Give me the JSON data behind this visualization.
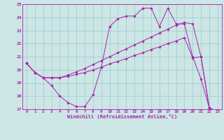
{
  "xlabel": "Windchill (Refroidissement éolien,°C)",
  "bg_color": "#cce5e5",
  "line_color": "#aa22aa",
  "grid_color": "#99cccc",
  "xlim": [
    -0.5,
    23.5
  ],
  "ylim": [
    17,
    25
  ],
  "xticks": [
    0,
    1,
    2,
    3,
    4,
    5,
    6,
    7,
    8,
    9,
    10,
    11,
    12,
    13,
    14,
    15,
    16,
    17,
    18,
    19,
    20,
    21,
    22,
    23
  ],
  "yticks": [
    17,
    18,
    19,
    20,
    21,
    22,
    23,
    24,
    25
  ],
  "line1_x": [
    0,
    1,
    2,
    3,
    4,
    5,
    6,
    7,
    8,
    9,
    10,
    11,
    12,
    13,
    14,
    15,
    16,
    17,
    18,
    19,
    20,
    21,
    22,
    23
  ],
  "line1_y": [
    20.5,
    19.8,
    19.4,
    18.8,
    18.0,
    17.5,
    17.2,
    17.2,
    18.1,
    20.2,
    23.3,
    23.9,
    24.1,
    24.1,
    24.7,
    24.7,
    23.3,
    24.7,
    23.5,
    23.5,
    21.0,
    19.3,
    17.1,
    16.8
  ],
  "line2_x": [
    0,
    1,
    2,
    3,
    4,
    5,
    6,
    7,
    8,
    9,
    10,
    11,
    12,
    13,
    14,
    15,
    16,
    17,
    18,
    19,
    20,
    21,
    22,
    23
  ],
  "line2_y": [
    20.5,
    19.8,
    19.4,
    19.4,
    19.4,
    19.5,
    19.65,
    19.8,
    20.0,
    20.2,
    20.45,
    20.65,
    20.85,
    21.1,
    21.3,
    21.55,
    21.75,
    22.0,
    22.2,
    22.45,
    20.9,
    21.0,
    17.1,
    16.8
  ],
  "line3_x": [
    0,
    1,
    2,
    3,
    4,
    5,
    6,
    7,
    8,
    9,
    10,
    11,
    12,
    13,
    14,
    15,
    16,
    17,
    18,
    19,
    20,
    21,
    22,
    23
  ],
  "line3_y": [
    20.5,
    19.8,
    19.4,
    19.4,
    19.4,
    19.6,
    19.85,
    20.1,
    20.4,
    20.7,
    21.0,
    21.3,
    21.6,
    21.9,
    22.2,
    22.5,
    22.8,
    23.1,
    23.4,
    23.6,
    23.5,
    21.0,
    17.1,
    16.8
  ]
}
